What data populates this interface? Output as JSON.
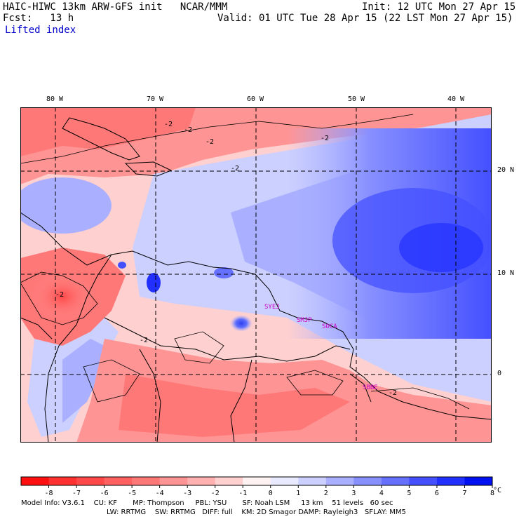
{
  "header": {
    "title": "HAIC-HIWC 13km ARW-GFS init   NCAR/MMM",
    "init": "Init: 12 UTC Mon 27 Apr 15",
    "forecast": "Fcst:   13 h",
    "valid": "Valid: 01 UTC Tue 28 Apr 15 (22 LST Mon 27 Apr 15)",
    "field": "Lifted index"
  },
  "map": {
    "lon_labels": [
      "80 W",
      "70 W",
      "60 W",
      "50 W",
      "40 W"
    ],
    "lat_labels": [
      "20 N",
      "10 N",
      "0"
    ],
    "contour_labels": [
      "-2",
      "-2",
      "-2",
      "-2",
      "-2",
      "-2",
      "-2",
      "-2"
    ],
    "station_labels": [
      "SYEJ",
      "SMJP",
      "SOCA",
      "SBBE"
    ],
    "station_color": "#cc00cc"
  },
  "colorbar": {
    "ticks": [
      "-8",
      "-7",
      "-6",
      "-5",
      "-4",
      "-3",
      "-2",
      "-1",
      "0",
      "1",
      "2",
      "3",
      "4",
      "5",
      "6",
      "7",
      "8"
    ],
    "unit": "°C",
    "colors": [
      "#ff1010",
      "#ff3030",
      "#ff4848",
      "#ff6060",
      "#ff7878",
      "#ff9494",
      "#ffb0b0",
      "#ffd0d0",
      "#fff2f2",
      "#eaeaff",
      "#ccd0ff",
      "#aab0ff",
      "#8890ff",
      "#6670ff",
      "#4450ff",
      "#2230ff",
      "#0010f0"
    ]
  },
  "footer": {
    "line1": "Model Info: V3.6.1    CU: KF       MP: Thompson     PBL: YSU       SF: Noah LSM     13 km    51 levels   60 sec",
    "line2": "LW: RRTMG    SW: RRTMG   DIFF: full    KM: 2D Smagor DAMP: Rayleigh3   SFLAY: MM5"
  }
}
